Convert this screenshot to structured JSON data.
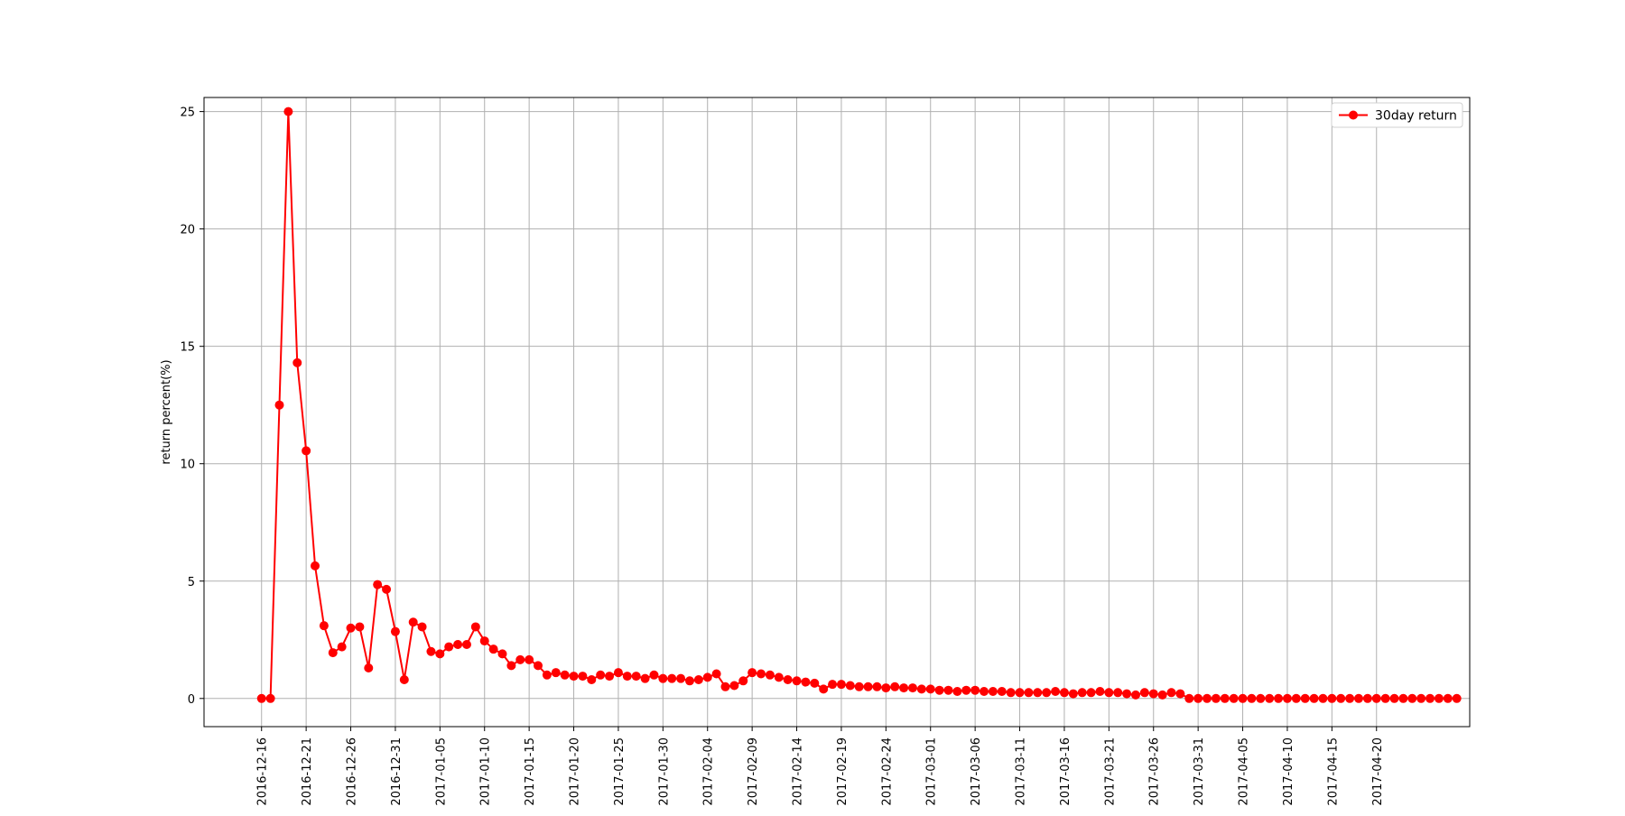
{
  "chart_data": {
    "type": "line",
    "title": "",
    "xlabel": "date",
    "ylabel": "return percent(%)",
    "ylim": [
      -1.2,
      25.6
    ],
    "grid": true,
    "legend_position": "top-right",
    "yticks": [
      0,
      5,
      10,
      15,
      20,
      25
    ],
    "xticks": [
      "2016-12-16",
      "2016-12-21",
      "2016-12-26",
      "2016-12-31",
      "2017-01-05",
      "2017-01-10",
      "2017-01-15",
      "2017-01-20",
      "2017-01-25",
      "2017-01-30",
      "2017-02-04",
      "2017-02-09",
      "2017-02-14",
      "2017-02-19",
      "2017-02-24",
      "2017-03-01",
      "2017-03-06",
      "2017-03-11",
      "2017-03-16",
      "2017-03-21",
      "2017-03-26",
      "2017-03-31",
      "2017-04-05",
      "2017-04-10",
      "2017-04-15",
      "2017-04-20"
    ],
    "x_start": "2016-12-16",
    "x_end": "2017-04-24",
    "series": [
      {
        "name": "30day return",
        "color": "#ff0000",
        "marker": "circle",
        "values": [
          0,
          0,
          12.5,
          25,
          14.3,
          10.55,
          5.65,
          3.1,
          1.95,
          2.2,
          3,
          3.05,
          1.3,
          4.85,
          4.65,
          2.85,
          0.8,
          3.25,
          3.05,
          2,
          1.9,
          2.2,
          2.3,
          2.3,
          3.05,
          2.45,
          2.1,
          1.9,
          1.4,
          1.65,
          1.65,
          1.4,
          1,
          1.1,
          1,
          0.95,
          0.95,
          0.8,
          1,
          0.95,
          1.1,
          0.95,
          0.95,
          0.85,
          1,
          0.85,
          0.85,
          0.85,
          0.75,
          0.8,
          0.9,
          1.05,
          0.5,
          0.55,
          0.75,
          1.1,
          1.05,
          1,
          0.9,
          0.8,
          0.75,
          0.7,
          0.65,
          0.4,
          0.6,
          0.6,
          0.55,
          0.5,
          0.5,
          0.5,
          0.45,
          0.5,
          0.45,
          0.45,
          0.4,
          0.4,
          0.35,
          0.35,
          0.3,
          0.35,
          0.35,
          0.3,
          0.3,
          0.3,
          0.25,
          0.25,
          0.25,
          0.25,
          0.25,
          0.3,
          0.25,
          0.2,
          0.25,
          0.25,
          0.3,
          0.25,
          0.25,
          0.2,
          0.15,
          0.25,
          0.2,
          0.15,
          0.25,
          0.2,
          0,
          0,
          0,
          0,
          0,
          0,
          0,
          0,
          0,
          0,
          0,
          0,
          0,
          0,
          0,
          0,
          0,
          0,
          0,
          0,
          0,
          0,
          0,
          0,
          0,
          0,
          0,
          0,
          0,
          0,
          0
        ]
      }
    ]
  }
}
